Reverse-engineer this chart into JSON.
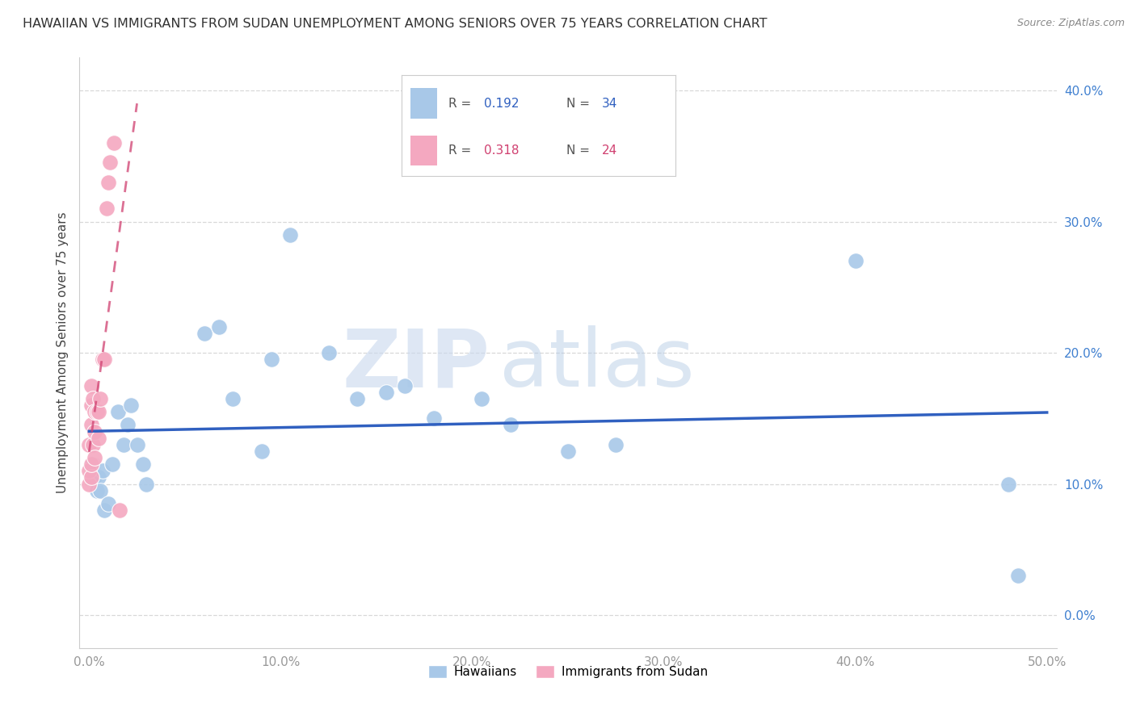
{
  "title": "HAWAIIAN VS IMMIGRANTS FROM SUDAN UNEMPLOYMENT AMONG SENIORS OVER 75 YEARS CORRELATION CHART",
  "source": "Source: ZipAtlas.com",
  "ylabel": "Unemployment Among Seniors over 75 years",
  "xlim": [
    -0.005,
    0.505
  ],
  "ylim": [
    -0.025,
    0.425
  ],
  "hawaiian_R": 0.192,
  "hawaiian_N": 34,
  "sudan_R": 0.318,
  "sudan_N": 24,
  "hawaiian_color": "#a8c8e8",
  "sudan_color": "#f4a8c0",
  "hawaiian_line_color": "#3060c0",
  "sudan_line_color": "#d04070",
  "background_color": "#ffffff",
  "watermark_zip": "ZIP",
  "watermark_atlas": "atlas",
  "hawaiian_x": [
    0.002,
    0.003,
    0.004,
    0.005,
    0.006,
    0.007,
    0.008,
    0.01,
    0.012,
    0.015,
    0.018,
    0.02,
    0.022,
    0.025,
    0.028,
    0.03,
    0.06,
    0.068,
    0.075,
    0.09,
    0.095,
    0.105,
    0.125,
    0.14,
    0.155,
    0.165,
    0.18,
    0.205,
    0.22,
    0.25,
    0.275,
    0.4,
    0.48,
    0.485
  ],
  "hawaiian_y": [
    0.115,
    0.105,
    0.095,
    0.105,
    0.095,
    0.11,
    0.08,
    0.085,
    0.115,
    0.155,
    0.13,
    0.145,
    0.16,
    0.13,
    0.115,
    0.1,
    0.215,
    0.22,
    0.165,
    0.125,
    0.195,
    0.29,
    0.2,
    0.165,
    0.17,
    0.175,
    0.15,
    0.165,
    0.145,
    0.125,
    0.13,
    0.27,
    0.1,
    0.03
  ],
  "sudan_x": [
    0.0,
    0.0,
    0.0,
    0.001,
    0.001,
    0.001,
    0.001,
    0.001,
    0.002,
    0.002,
    0.003,
    0.003,
    0.003,
    0.004,
    0.005,
    0.005,
    0.006,
    0.007,
    0.008,
    0.009,
    0.01,
    0.011,
    0.013,
    0.016
  ],
  "sudan_y": [
    0.1,
    0.11,
    0.13,
    0.105,
    0.115,
    0.145,
    0.16,
    0.175,
    0.13,
    0.165,
    0.12,
    0.14,
    0.155,
    0.155,
    0.135,
    0.155,
    0.165,
    0.195,
    0.195,
    0.31,
    0.33,
    0.345,
    0.36,
    0.08
  ],
  "tick_color_x": "#999999",
  "tick_color_y": "#4080d0"
}
